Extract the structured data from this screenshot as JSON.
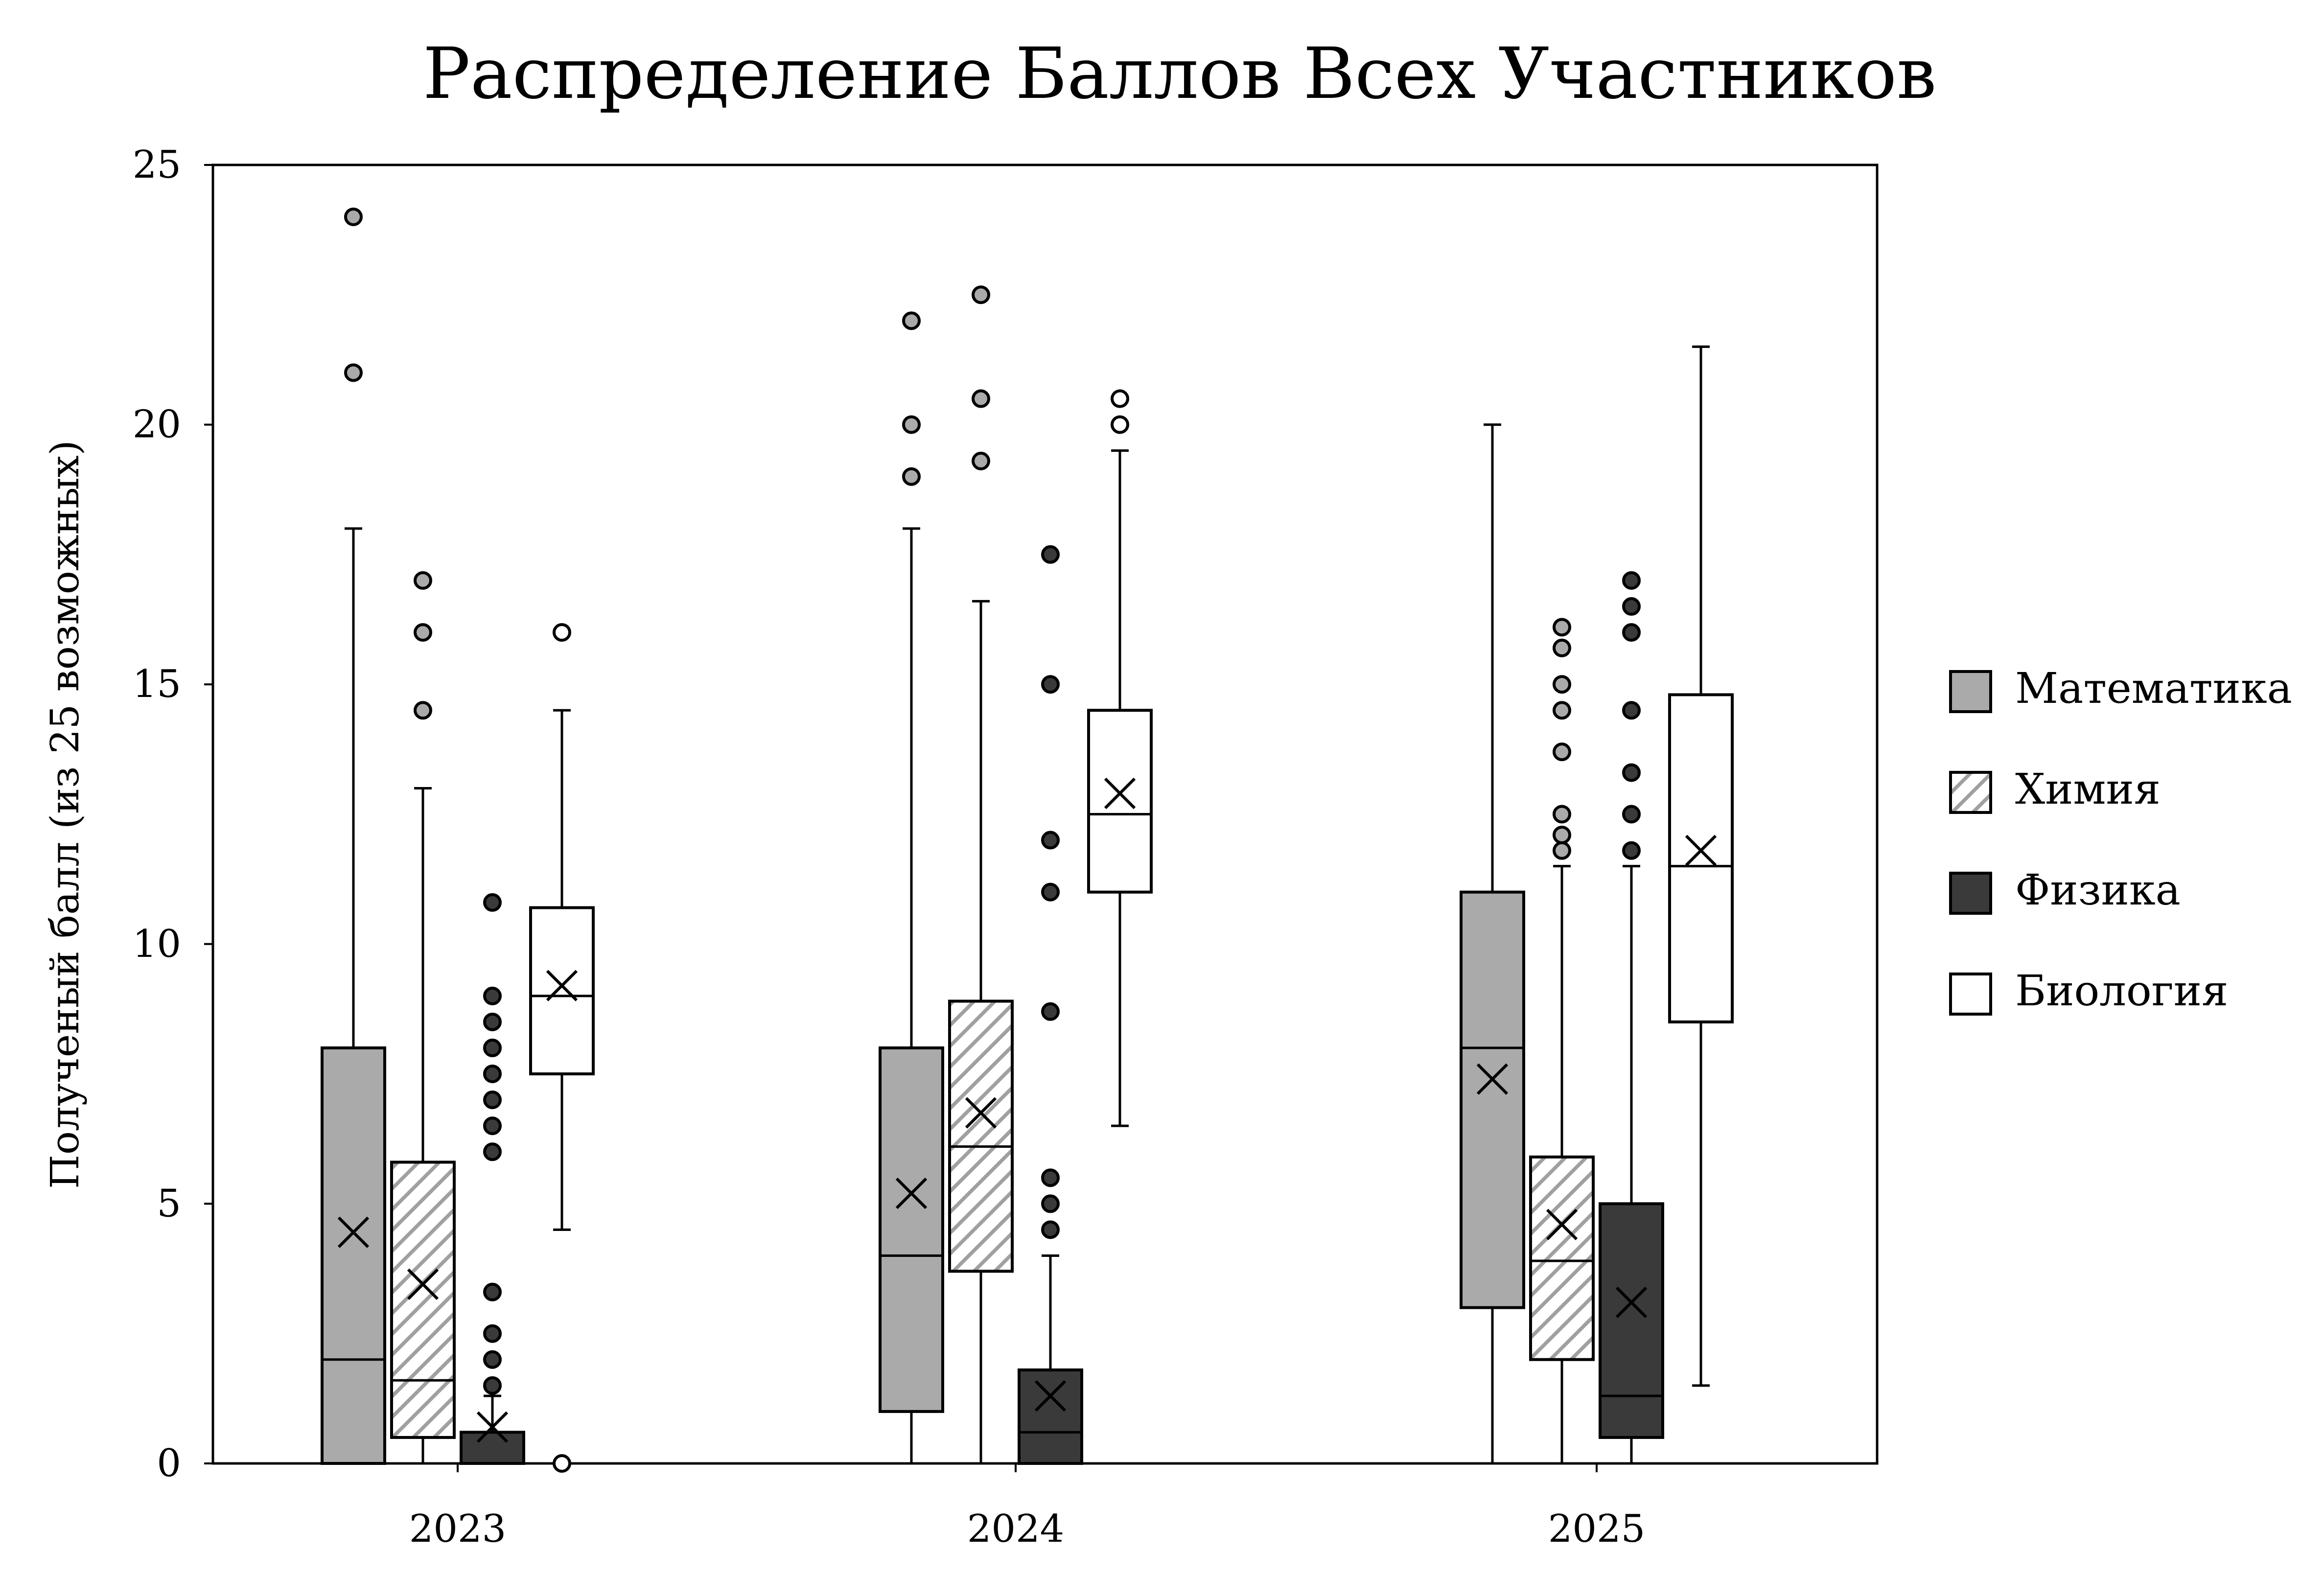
{
  "chart_data": {
    "type": "box",
    "title": "Распределение Баллов Всех Участников",
    "xlabel": "",
    "ylabel": "Полученый балл (из 25 возможных)",
    "ylim": [
      0,
      25
    ],
    "yticks": [
      0,
      5,
      10,
      15,
      20,
      25
    ],
    "categories": [
      "2023",
      "2024",
      "2025"
    ],
    "legend_position": "right",
    "grid": false,
    "series": [
      {
        "name": "Математика",
        "fill": "#aaaaaa",
        "pattern": "solid",
        "outlier_fill": "#aaaaaa",
        "boxes": [
          {
            "whisker_low": 0,
            "q1": 0,
            "median": 2,
            "q3": 8,
            "whisker_high": 18,
            "mean": 4.45,
            "outliers": [
              21,
              24
            ]
          },
          {
            "whisker_low": 0,
            "q1": 1,
            "median": 4,
            "q3": 8,
            "whisker_high": 18,
            "mean": 5.2,
            "outliers": [
              19,
              20,
              22
            ]
          },
          {
            "whisker_low": 0,
            "q1": 3,
            "median": 8,
            "q3": 11,
            "whisker_high": 20,
            "mean": 7.4,
            "outliers": []
          }
        ]
      },
      {
        "name": "Химия",
        "fill": "#ffffff",
        "pattern": "hatch",
        "outlier_fill": "#aaaaaa",
        "boxes": [
          {
            "whisker_low": 0,
            "q1": 0.5,
            "median": 1.6,
            "q3": 5.8,
            "whisker_high": 13,
            "mean": 3.45,
            "outliers": [
              14.5,
              16,
              17
            ]
          },
          {
            "whisker_low": 0,
            "q1": 3.7,
            "median": 6.1,
            "q3": 8.9,
            "whisker_high": 16.6,
            "mean": 6.75,
            "outliers": [
              19.3,
              20.5,
              22.5
            ]
          },
          {
            "whisker_low": 0,
            "q1": 2,
            "median": 3.9,
            "q3": 5.9,
            "whisker_high": 11.5,
            "mean": 4.6,
            "outliers": [
              11.8,
              12.1,
              12.5,
              13.7,
              14.5,
              15,
              15.7,
              16.1
            ]
          }
        ]
      },
      {
        "name": "Физика",
        "fill": "#3a3a3a",
        "pattern": "solid",
        "outlier_fill": "#3a3a3a",
        "boxes": [
          {
            "whisker_low": 0,
            "q1": 0,
            "median": 0,
            "q3": 0.6,
            "whisker_high": 1.3,
            "mean": 0.7,
            "outliers": [
              1.5,
              2,
              2.5,
              3.3,
              6,
              6.5,
              7,
              7.5,
              8,
              8.5,
              9,
              10.8
            ]
          },
          {
            "whisker_low": 0,
            "q1": 0,
            "median": 0.6,
            "q3": 1.8,
            "whisker_high": 4,
            "mean": 1.3,
            "outliers": [
              4.5,
              5,
              5.5,
              8.7,
              11,
              12,
              15,
              17.5
            ]
          },
          {
            "whisker_low": 0,
            "q1": 0.5,
            "median": 1.3,
            "q3": 5,
            "whisker_high": 11.5,
            "mean": 3.1,
            "outliers": [
              11.8,
              12.5,
              13.3,
              14.5,
              16,
              16.5,
              17
            ]
          }
        ]
      },
      {
        "name": "Биология",
        "fill": "#ffffff",
        "pattern": "solid",
        "outlier_fill": "#ffffff",
        "boxes": [
          {
            "whisker_low": 4.5,
            "q1": 7.5,
            "median": 9,
            "q3": 10.7,
            "whisker_high": 14.5,
            "mean": 9.2,
            "outliers": [
              0,
              16
            ]
          },
          {
            "whisker_low": 6.5,
            "q1": 11,
            "median": 12.5,
            "q3": 14.5,
            "whisker_high": 19.5,
            "mean": 12.9,
            "outliers": [
              20,
              20.5
            ]
          },
          {
            "whisker_low": 1.5,
            "q1": 8.5,
            "median": 11.5,
            "q3": 14.8,
            "whisker_high": 21.5,
            "mean": 11.8,
            "outliers": []
          }
        ]
      }
    ]
  }
}
